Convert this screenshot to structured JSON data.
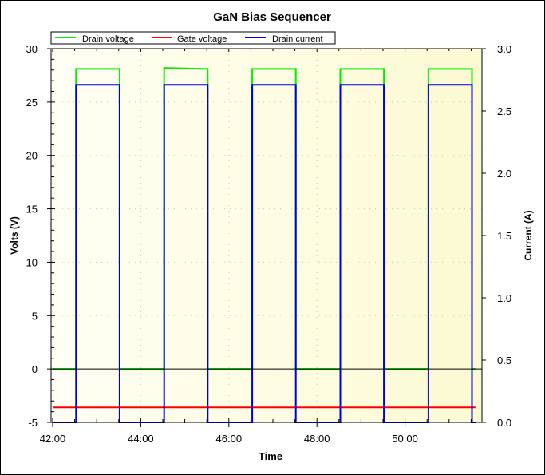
{
  "chart_data": {
    "type": "line",
    "title": "GaN Bias Sequencer",
    "xlabel": "Time",
    "ylabel": "Volts (V)",
    "y2label": "Current (A)",
    "xlim_minutes": [
      42.0,
      51.8
    ],
    "ylim": [
      -5,
      30
    ],
    "y2lim": [
      0.0,
      3.0
    ],
    "x_ticks": [
      "42:00",
      "44:00",
      "46:00",
      "48:00",
      "50:00"
    ],
    "x_tick_values_min": [
      42,
      44,
      46,
      48,
      50
    ],
    "y_ticks": [
      -5,
      0,
      5,
      10,
      15,
      20,
      25,
      30
    ],
    "y2_ticks": [
      "0.0",
      "0.5",
      "1.0",
      "1.5",
      "2.0",
      "2.5",
      "3.0"
    ],
    "grid": "dotted",
    "legend_position": "top-left",
    "legend": [
      "Drain voltage",
      "Gate voltage",
      "Drain current"
    ],
    "series": [
      {
        "name": "Drain voltage",
        "axis": "left",
        "color": "#00ee00",
        "x_min": [
          42.0,
          42.53,
          42.53,
          43.52,
          43.52,
          44.53,
          44.53,
          45.52,
          45.52,
          46.53,
          46.53,
          47.52,
          47.52,
          48.53,
          48.53,
          49.52,
          49.52,
          50.53,
          50.53,
          51.52,
          51.52,
          51.6
        ],
        "values": [
          0,
          0,
          28.1,
          28.1,
          0,
          0,
          28.2,
          28.1,
          0,
          0,
          28.1,
          28.1,
          0,
          0,
          28.1,
          28.1,
          0,
          0,
          28.1,
          28.1,
          0,
          0
        ]
      },
      {
        "name": "Gate voltage",
        "axis": "left",
        "color": "#ff0000",
        "x_min": [
          42.0,
          51.6
        ],
        "values": [
          -3.6,
          -3.6
        ]
      },
      {
        "name": "Drain current",
        "axis": "right",
        "color": "#0000dd",
        "x_min": [
          42.0,
          42.53,
          42.53,
          43.52,
          43.52,
          44.53,
          44.53,
          45.52,
          45.52,
          46.53,
          46.53,
          47.52,
          47.52,
          48.53,
          48.53,
          49.52,
          49.52,
          50.53,
          50.53,
          51.52,
          51.52,
          51.6
        ],
        "values": [
          0,
          0,
          2.71,
          2.71,
          0,
          0,
          2.71,
          2.71,
          0,
          0,
          2.71,
          2.71,
          0,
          0,
          2.71,
          2.71,
          0,
          0,
          2.71,
          2.71,
          0,
          0
        ]
      }
    ]
  },
  "colors": {
    "plot_bg_top": "#fdfbd8",
    "plot_bg_bottom": "#fffff2",
    "drain_voltage": "#00ee00",
    "gate_voltage": "#ff0000",
    "drain_current": "#0000dd",
    "grid": "#c8c8c8"
  }
}
